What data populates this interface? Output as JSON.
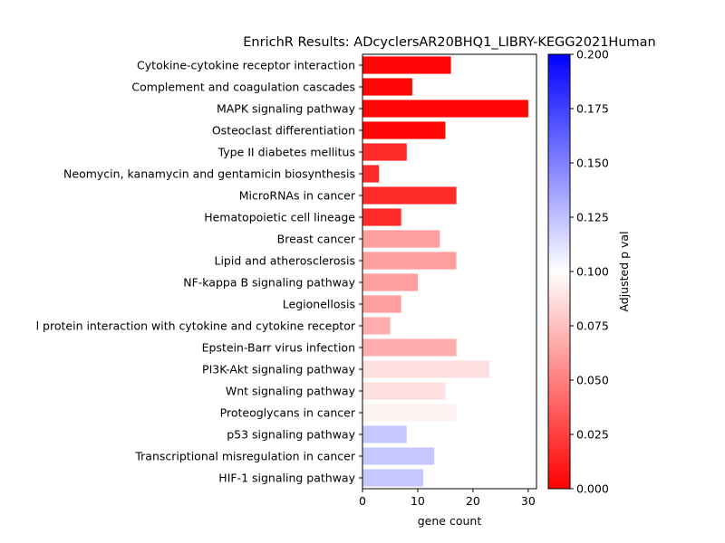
{
  "chart_data": {
    "type": "bar",
    "orientation": "horizontal",
    "title": "EnrichR Results: ADcyclersAR20BHQ1_LIBRY-KEGG2021Human",
    "xlabel": "gene count",
    "ylabel": "",
    "xlim": [
      0,
      31.5
    ],
    "xticks": [
      0,
      10,
      20,
      30
    ],
    "categories": [
      "Cytokine-cytokine receptor interaction",
      "Complement and coagulation cascades",
      "MAPK signaling pathway",
      "Osteoclast differentiation",
      "Type II diabetes mellitus",
      "Neomycin, kanamycin and gentamicin biosynthesis",
      "MicroRNAs in cancer",
      "Hematopoietic cell lineage",
      "Breast cancer",
      "Lipid and atherosclerosis",
      "NF-kappa B signaling pathway",
      "Legionellosis",
      "l protein interaction with cytokine and cytokine receptor",
      "Epstein-Barr virus infection",
      "PI3K-Akt signaling pathway",
      "Wnt signaling pathway",
      "Proteoglycans in cancer",
      "p53 signaling pathway",
      "Transcriptional misregulation in cancer",
      "HIF-1 signaling pathway"
    ],
    "values": [
      16,
      9,
      30,
      15,
      8,
      3,
      17,
      7,
      14,
      17,
      10,
      7,
      5,
      17,
      23,
      15,
      17,
      8,
      13,
      11
    ],
    "adjusted_p": [
      0.002,
      0.002,
      0.002,
      0.002,
      0.017,
      0.017,
      0.017,
      0.017,
      0.062,
      0.062,
      0.062,
      0.062,
      0.068,
      0.068,
      0.088,
      0.088,
      0.095,
      0.122,
      0.122,
      0.122
    ],
    "colorbar": {
      "label": "Adjusted p val",
      "range": [
        0,
        0.2
      ],
      "ticks": [
        0.0,
        0.025,
        0.05,
        0.075,
        0.1,
        0.125,
        0.15,
        0.175,
        0.2
      ],
      "tick_labels": [
        "0.000",
        "0.025",
        "0.050",
        "0.075",
        "0.100",
        "0.125",
        "0.150",
        "0.175",
        "0.200"
      ],
      "colormap": "bwr_r",
      "colors": {
        "low": "#ff0000",
        "mid": "#ffffff",
        "high": "#0000ff"
      }
    },
    "grid": false,
    "legend": "none"
  }
}
